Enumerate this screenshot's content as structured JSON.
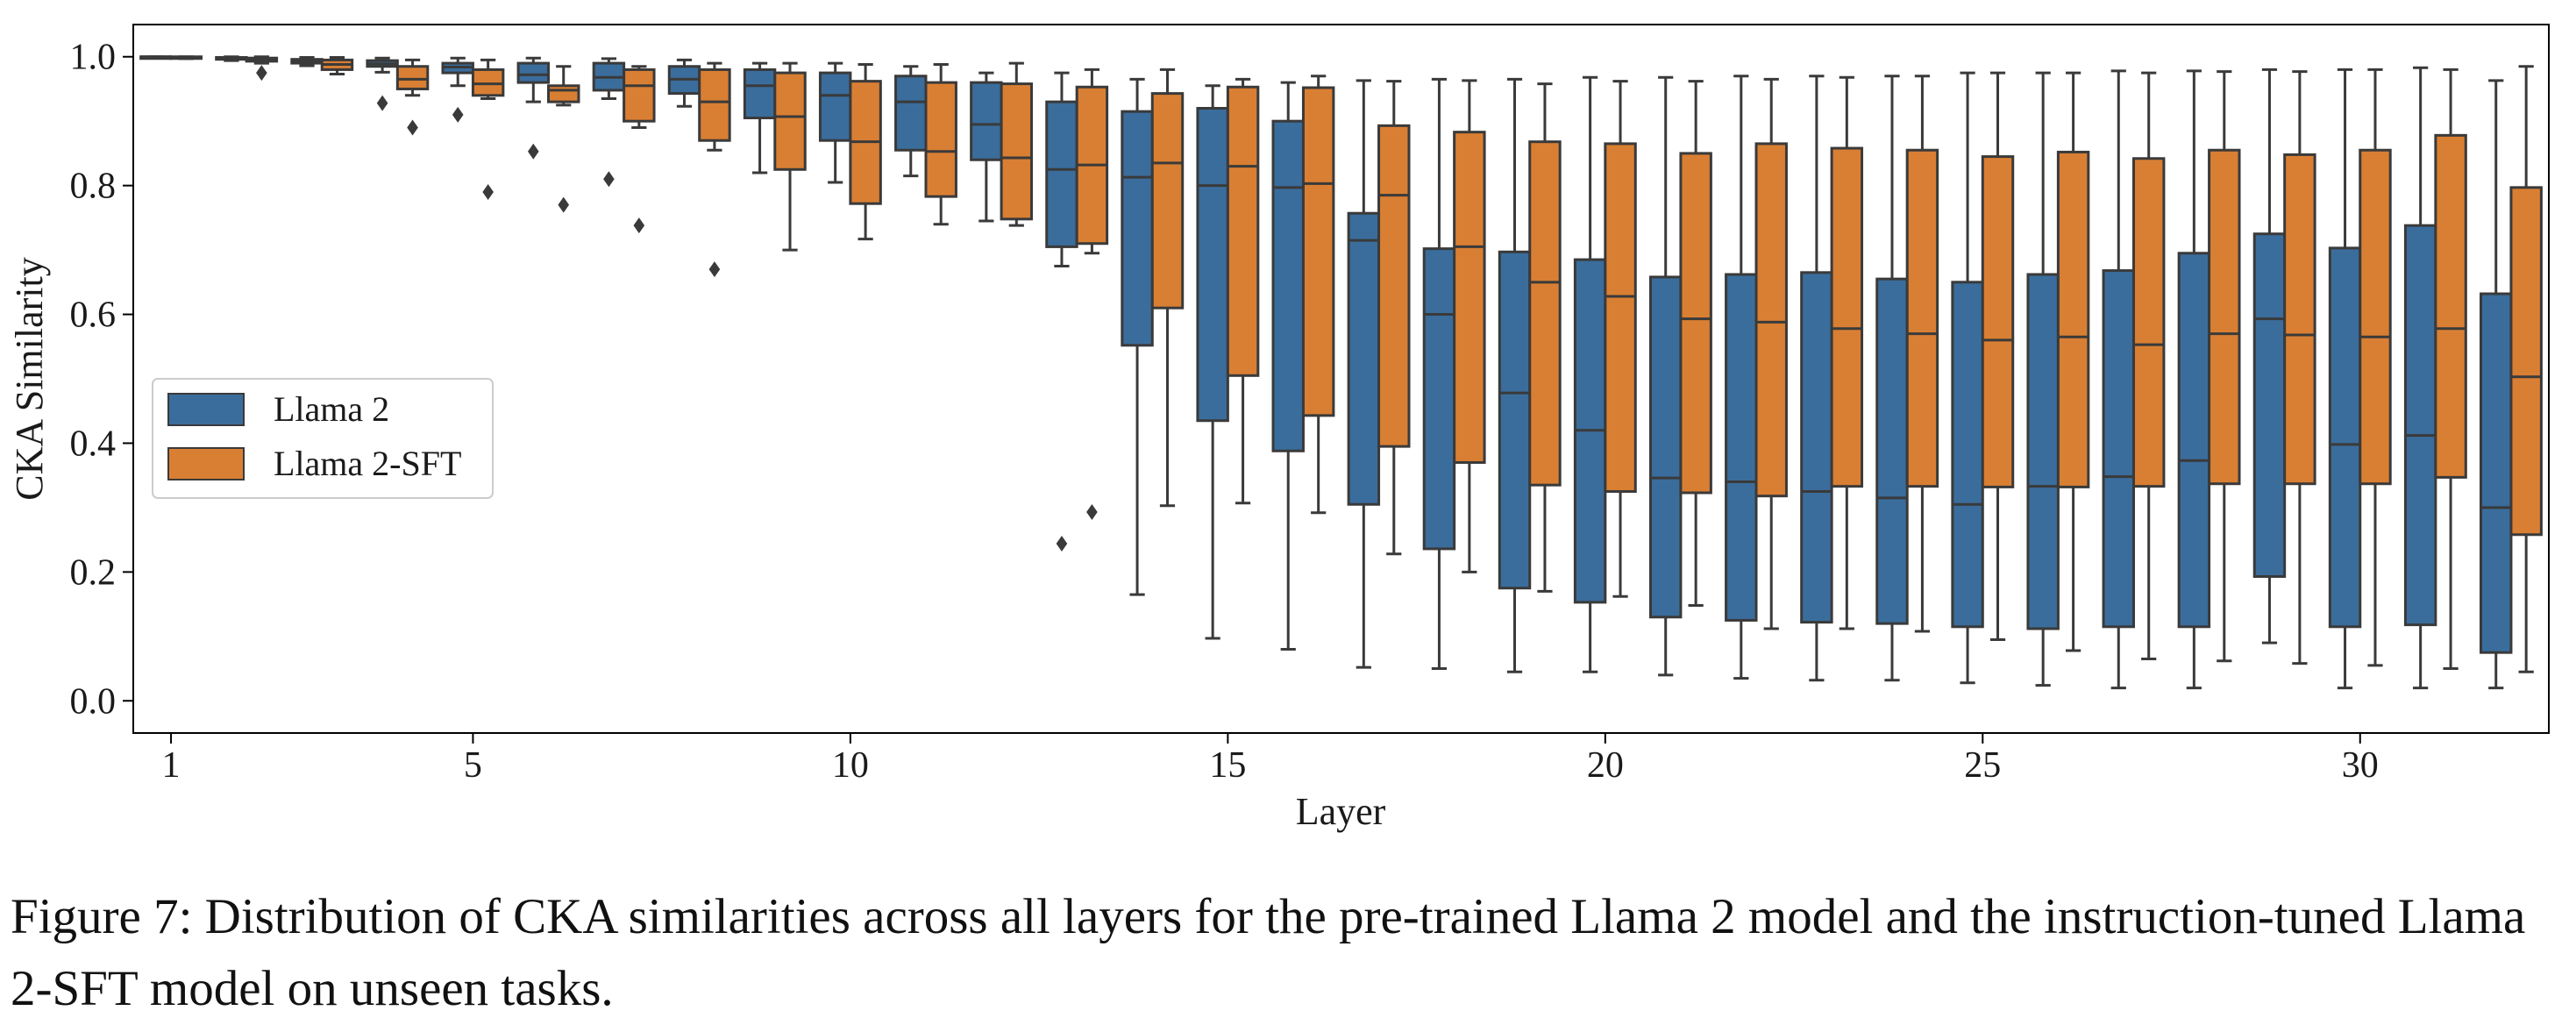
{
  "caption": "Figure 7: Distribution of CKA similarities across all layers for the pre-trained Llama 2 model and the instruction-tuned Llama 2-SFT model on unseen tasks.",
  "colors": {
    "llama2": "#3a6d9c",
    "sft": "#d97f33",
    "line": "#3a3a3a"
  },
  "chart_data": {
    "type": "box",
    "xlabel": "Layer",
    "ylabel": "CKA Similarity",
    "ylim": [
      -0.05,
      1.05
    ],
    "yticks": [
      0.0,
      0.2,
      0.4,
      0.6,
      0.8,
      1.0
    ],
    "ytick_labels": [
      "0.0",
      "0.2",
      "0.4",
      "0.6",
      "0.8",
      "1.0"
    ],
    "xticks": [
      1,
      5,
      10,
      15,
      20,
      25,
      30
    ],
    "xtick_labels": [
      "1",
      "5",
      "10",
      "15",
      "20",
      "25",
      "30"
    ],
    "legend": {
      "position": "center-left",
      "entries": [
        "Llama 2",
        "Llama 2-SFT"
      ]
    },
    "grid": false,
    "series": [
      {
        "name": "Llama 2",
        "boxes": [
          {
            "layer": 1,
            "whislo": 0.998,
            "q1": 0.999,
            "med": 1.0,
            "q3": 1.0,
            "whishi": 1.0,
            "fliers": []
          },
          {
            "layer": 2,
            "whislo": 0.994,
            "q1": 0.996,
            "med": 0.998,
            "q3": 0.999,
            "whishi": 1.0,
            "fliers": []
          },
          {
            "layer": 3,
            "whislo": 0.986,
            "q1": 0.99,
            "med": 0.993,
            "q3": 0.996,
            "whishi": 0.999,
            "fliers": []
          },
          {
            "layer": 4,
            "whislo": 0.976,
            "q1": 0.985,
            "med": 0.989,
            "q3": 0.994,
            "whishi": 0.998,
            "fliers": [
              0.928
            ]
          },
          {
            "layer": 5,
            "whislo": 0.955,
            "q1": 0.975,
            "med": 0.984,
            "q3": 0.99,
            "whishi": 0.998,
            "fliers": [
              0.91
            ]
          },
          {
            "layer": 6,
            "whislo": 0.93,
            "q1": 0.96,
            "med": 0.972,
            "q3": 0.99,
            "whishi": 0.998,
            "fliers": [
              0.853
            ]
          },
          {
            "layer": 7,
            "whislo": 0.935,
            "q1": 0.948,
            "med": 0.968,
            "q3": 0.99,
            "whishi": 0.997,
            "fliers": [
              0.81
            ]
          },
          {
            "layer": 8,
            "whislo": 0.923,
            "q1": 0.943,
            "med": 0.965,
            "q3": 0.985,
            "whishi": 0.995,
            "fliers": []
          },
          {
            "layer": 9,
            "whislo": 0.82,
            "q1": 0.905,
            "med": 0.955,
            "q3": 0.98,
            "whishi": 0.99,
            "fliers": []
          },
          {
            "layer": 10,
            "whislo": 0.805,
            "q1": 0.87,
            "med": 0.94,
            "q3": 0.975,
            "whishi": 0.99,
            "fliers": []
          },
          {
            "layer": 11,
            "whislo": 0.815,
            "q1": 0.855,
            "med": 0.93,
            "q3": 0.97,
            "whishi": 0.985,
            "fliers": []
          },
          {
            "layer": 12,
            "whislo": 0.745,
            "q1": 0.84,
            "med": 0.895,
            "q3": 0.96,
            "whishi": 0.975,
            "fliers": []
          },
          {
            "layer": 13,
            "whislo": 0.675,
            "q1": 0.705,
            "med": 0.825,
            "q3": 0.93,
            "whishi": 0.975,
            "fliers": [
              0.244
            ]
          },
          {
            "layer": 14,
            "whislo": 0.165,
            "q1": 0.552,
            "med": 0.813,
            "q3": 0.915,
            "whishi": 0.965,
            "fliers": []
          },
          {
            "layer": 15,
            "whislo": 0.097,
            "q1": 0.435,
            "med": 0.8,
            "q3": 0.92,
            "whishi": 0.955,
            "fliers": []
          },
          {
            "layer": 16,
            "whislo": 0.08,
            "q1": 0.388,
            "med": 0.797,
            "q3": 0.9,
            "whishi": 0.96,
            "fliers": []
          },
          {
            "layer": 17,
            "whislo": 0.052,
            "q1": 0.305,
            "med": 0.715,
            "q3": 0.757,
            "whishi": 0.963,
            "fliers": []
          },
          {
            "layer": 18,
            "whislo": 0.05,
            "q1": 0.236,
            "med": 0.6,
            "q3": 0.702,
            "whishi": 0.965,
            "fliers": []
          },
          {
            "layer": 19,
            "whislo": 0.045,
            "q1": 0.175,
            "med": 0.478,
            "q3": 0.697,
            "whishi": 0.965,
            "fliers": []
          },
          {
            "layer": 20,
            "whislo": 0.045,
            "q1": 0.153,
            "med": 0.42,
            "q3": 0.685,
            "whishi": 0.968,
            "fliers": []
          },
          {
            "layer": 21,
            "whislo": 0.04,
            "q1": 0.13,
            "med": 0.346,
            "q3": 0.658,
            "whishi": 0.968,
            "fliers": []
          },
          {
            "layer": 22,
            "whislo": 0.035,
            "q1": 0.125,
            "med": 0.34,
            "q3": 0.662,
            "whishi": 0.97,
            "fliers": []
          },
          {
            "layer": 23,
            "whislo": 0.032,
            "q1": 0.122,
            "med": 0.325,
            "q3": 0.665,
            "whishi": 0.97,
            "fliers": []
          },
          {
            "layer": 24,
            "whislo": 0.032,
            "q1": 0.12,
            "med": 0.315,
            "q3": 0.655,
            "whishi": 0.97,
            "fliers": []
          },
          {
            "layer": 25,
            "whislo": 0.028,
            "q1": 0.115,
            "med": 0.305,
            "q3": 0.65,
            "whishi": 0.975,
            "fliers": []
          },
          {
            "layer": 26,
            "whislo": 0.024,
            "q1": 0.112,
            "med": 0.333,
            "q3": 0.662,
            "whishi": 0.975,
            "fliers": []
          },
          {
            "layer": 27,
            "whislo": 0.02,
            "q1": 0.115,
            "med": 0.348,
            "q3": 0.668,
            "whishi": 0.978,
            "fliers": []
          },
          {
            "layer": 28,
            "whislo": 0.02,
            "q1": 0.115,
            "med": 0.373,
            "q3": 0.695,
            "whishi": 0.978,
            "fliers": []
          },
          {
            "layer": 29,
            "whislo": 0.09,
            "q1": 0.193,
            "med": 0.593,
            "q3": 0.725,
            "whishi": 0.98,
            "fliers": []
          },
          {
            "layer": 30,
            "whislo": 0.02,
            "q1": 0.115,
            "med": 0.398,
            "q3": 0.703,
            "whishi": 0.98,
            "fliers": []
          },
          {
            "layer": 31,
            "whislo": 0.02,
            "q1": 0.118,
            "med": 0.412,
            "q3": 0.738,
            "whishi": 0.983,
            "fliers": []
          },
          {
            "layer": 32,
            "whislo": 0.02,
            "q1": 0.075,
            "med": 0.3,
            "q3": 0.632,
            "whishi": 0.963,
            "fliers": []
          }
        ]
      },
      {
        "name": "Llama 2-SFT",
        "boxes": [
          {
            "layer": 1,
            "whislo": 0.997,
            "q1": 0.998,
            "med": 0.999,
            "q3": 1.0,
            "whishi": 1.0,
            "fliers": []
          },
          {
            "layer": 2,
            "whislo": 0.99,
            "q1": 0.993,
            "med": 0.996,
            "q3": 0.998,
            "whishi": 1.0,
            "fliers": [
              0.975
            ]
          },
          {
            "layer": 3,
            "whislo": 0.973,
            "q1": 0.98,
            "med": 0.988,
            "q3": 0.995,
            "whishi": 0.999,
            "fliers": []
          },
          {
            "layer": 4,
            "whislo": 0.94,
            "q1": 0.95,
            "med": 0.965,
            "q3": 0.985,
            "whishi": 0.995,
            "fliers": [
              0.89
            ]
          },
          {
            "layer": 5,
            "whislo": 0.935,
            "q1": 0.94,
            "med": 0.958,
            "q3": 0.98,
            "whishi": 0.995,
            "fliers": [
              0.79
            ]
          },
          {
            "layer": 6,
            "whislo": 0.925,
            "q1": 0.93,
            "med": 0.948,
            "q3": 0.955,
            "whishi": 0.985,
            "fliers": [
              0.77
            ]
          },
          {
            "layer": 7,
            "whislo": 0.89,
            "q1": 0.9,
            "med": 0.955,
            "q3": 0.98,
            "whishi": 0.985,
            "fliers": [
              0.738
            ]
          },
          {
            "layer": 8,
            "whislo": 0.855,
            "q1": 0.87,
            "med": 0.93,
            "q3": 0.98,
            "whishi": 0.99,
            "fliers": [
              0.67
            ]
          },
          {
            "layer": 9,
            "whislo": 0.7,
            "q1": 0.825,
            "med": 0.907,
            "q3": 0.975,
            "whishi": 0.99,
            "fliers": []
          },
          {
            "layer": 10,
            "whislo": 0.717,
            "q1": 0.772,
            "med": 0.868,
            "q3": 0.962,
            "whishi": 0.988,
            "fliers": []
          },
          {
            "layer": 11,
            "whislo": 0.74,
            "q1": 0.783,
            "med": 0.853,
            "q3": 0.96,
            "whishi": 0.988,
            "fliers": []
          },
          {
            "layer": 12,
            "whislo": 0.738,
            "q1": 0.748,
            "med": 0.843,
            "q3": 0.958,
            "whishi": 0.99,
            "fliers": []
          },
          {
            "layer": 13,
            "whislo": 0.695,
            "q1": 0.71,
            "med": 0.832,
            "q3": 0.953,
            "whishi": 0.98,
            "fliers": [
              0.293
            ]
          },
          {
            "layer": 14,
            "whislo": 0.303,
            "q1": 0.61,
            "med": 0.835,
            "q3": 0.943,
            "whishi": 0.98,
            "fliers": []
          },
          {
            "layer": 15,
            "whislo": 0.307,
            "q1": 0.505,
            "med": 0.83,
            "q3": 0.953,
            "whishi": 0.965,
            "fliers": []
          },
          {
            "layer": 16,
            "whislo": 0.292,
            "q1": 0.443,
            "med": 0.803,
            "q3": 0.952,
            "whishi": 0.97,
            "fliers": []
          },
          {
            "layer": 17,
            "whislo": 0.228,
            "q1": 0.395,
            "med": 0.785,
            "q3": 0.893,
            "whishi": 0.962,
            "fliers": []
          },
          {
            "layer": 18,
            "whislo": 0.2,
            "q1": 0.37,
            "med": 0.705,
            "q3": 0.883,
            "whishi": 0.963,
            "fliers": []
          },
          {
            "layer": 19,
            "whislo": 0.17,
            "q1": 0.335,
            "med": 0.65,
            "q3": 0.868,
            "whishi": 0.958,
            "fliers": []
          },
          {
            "layer": 20,
            "whislo": 0.162,
            "q1": 0.325,
            "med": 0.628,
            "q3": 0.865,
            "whishi": 0.962,
            "fliers": []
          },
          {
            "layer": 21,
            "whislo": 0.148,
            "q1": 0.323,
            "med": 0.593,
            "q3": 0.85,
            "whishi": 0.962,
            "fliers": []
          },
          {
            "layer": 22,
            "whislo": 0.112,
            "q1": 0.318,
            "med": 0.588,
            "q3": 0.865,
            "whishi": 0.965,
            "fliers": []
          },
          {
            "layer": 23,
            "whislo": 0.112,
            "q1": 0.333,
            "med": 0.578,
            "q3": 0.858,
            "whishi": 0.968,
            "fliers": []
          },
          {
            "layer": 24,
            "whislo": 0.108,
            "q1": 0.333,
            "med": 0.57,
            "q3": 0.855,
            "whishi": 0.97,
            "fliers": []
          },
          {
            "layer": 25,
            "whislo": 0.095,
            "q1": 0.332,
            "med": 0.56,
            "q3": 0.845,
            "whishi": 0.975,
            "fliers": []
          },
          {
            "layer": 26,
            "whislo": 0.078,
            "q1": 0.332,
            "med": 0.565,
            "q3": 0.852,
            "whishi": 0.975,
            "fliers": []
          },
          {
            "layer": 27,
            "whislo": 0.065,
            "q1": 0.333,
            "med": 0.553,
            "q3": 0.842,
            "whishi": 0.975,
            "fliers": []
          },
          {
            "layer": 28,
            "whislo": 0.062,
            "q1": 0.337,
            "med": 0.57,
            "q3": 0.855,
            "whishi": 0.977,
            "fliers": []
          },
          {
            "layer": 29,
            "whislo": 0.058,
            "q1": 0.337,
            "med": 0.568,
            "q3": 0.848,
            "whishi": 0.977,
            "fliers": []
          },
          {
            "layer": 30,
            "whislo": 0.055,
            "q1": 0.337,
            "med": 0.565,
            "q3": 0.855,
            "whishi": 0.98,
            "fliers": []
          },
          {
            "layer": 31,
            "whislo": 0.05,
            "q1": 0.347,
            "med": 0.578,
            "q3": 0.878,
            "whishi": 0.98,
            "fliers": []
          },
          {
            "layer": 32,
            "whislo": 0.045,
            "q1": 0.258,
            "med": 0.503,
            "q3": 0.797,
            "whishi": 0.985,
            "fliers": []
          }
        ]
      }
    ]
  }
}
